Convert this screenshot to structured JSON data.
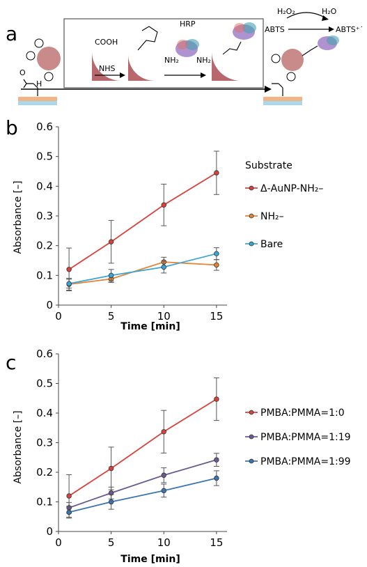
{
  "panels": {
    "a": "a",
    "b": "b",
    "c": "c"
  },
  "scheme": {
    "h2o2": "H₂O₂",
    "h2o": "H₂O",
    "abts": "ABTS",
    "abts_ox": "ABTS⁺˙",
    "cooh": "COOH",
    "nhs": "NHS",
    "hrp": "HRP",
    "nh2": "NH₂",
    "colors": {
      "particle": "#c98a8a",
      "layer_top": "#f4b383",
      "layer_bottom": "#a9d8ec",
      "substrate_shape": "#b8686c"
    }
  },
  "chart_data": [
    {
      "type": "line",
      "panel": "b",
      "xlabel": "Time [min]",
      "ylabel": "Absorbance [–]",
      "xlim": [
        0,
        16
      ],
      "ylim": [
        0,
        0.6
      ],
      "x_ticks": [
        0,
        5,
        10,
        15
      ],
      "y_ticks": [
        0,
        0.1,
        0.2,
        0.3,
        0.4,
        0.5,
        0.6
      ],
      "x_tick_labels": [
        "0",
        "5",
        "10",
        "15"
      ],
      "y_tick_labels": [
        "0",
        "0.1",
        "0.2",
        "0.3",
        "0.4",
        "0.5",
        "0.6"
      ],
      "legend_title": "Substrate",
      "legend_position": "right",
      "grid": false,
      "x": [
        1,
        5,
        10,
        15
      ],
      "series": [
        {
          "name": "Δ-AuNP-NH₂–",
          "color": "#d9413c",
          "values": [
            0.12,
            0.213,
            0.337,
            0.445
          ],
          "errors": [
            0.072,
            0.072,
            0.07,
            0.073
          ]
        },
        {
          "name": "NH₂–",
          "color": "#e58433",
          "values": [
            0.07,
            0.088,
            0.145,
            0.135
          ],
          "errors": [
            0.02,
            0.012,
            0.016,
            0.018
          ]
        },
        {
          "name": "Bare",
          "color": "#3aa6d8",
          "values": [
            0.072,
            0.1,
            0.128,
            0.173
          ],
          "errors": [
            0.015,
            0.02,
            0.02,
            0.02
          ]
        }
      ]
    },
    {
      "type": "line",
      "panel": "c",
      "xlabel": "Time [min]",
      "ylabel": "Absorbance [–]",
      "xlim": [
        0,
        16
      ],
      "ylim": [
        0,
        0.6
      ],
      "x_ticks": [
        0,
        5,
        10,
        15
      ],
      "y_ticks": [
        0,
        0.1,
        0.2,
        0.3,
        0.4,
        0.5,
        0.6
      ],
      "x_tick_labels": [
        "0",
        "5",
        "10",
        "15"
      ],
      "y_tick_labels": [
        "0",
        "0.1",
        "0.2",
        "0.3",
        "0.4",
        "0.5",
        "0.6"
      ],
      "legend_position": "right",
      "grid": false,
      "x": [
        1,
        5,
        10,
        15
      ],
      "series": [
        {
          "name": "PMBA:PMMA=1:0",
          "color": "#d9413c",
          "values": [
            0.12,
            0.213,
            0.337,
            0.447
          ],
          "errors": [
            0.072,
            0.072,
            0.072,
            0.072
          ]
        },
        {
          "name": "PMBA:PMMA=1:19",
          "color": "#6a5a92",
          "values": [
            0.08,
            0.13,
            0.19,
            0.242
          ],
          "errors": [
            0.018,
            0.02,
            0.025,
            0.022
          ]
        },
        {
          "name": "PMBA:PMMA=1:99",
          "color": "#3b75b1",
          "values": [
            0.065,
            0.1,
            0.138,
            0.18
          ],
          "errors": [
            0.02,
            0.025,
            0.022,
            0.025
          ]
        }
      ]
    }
  ]
}
